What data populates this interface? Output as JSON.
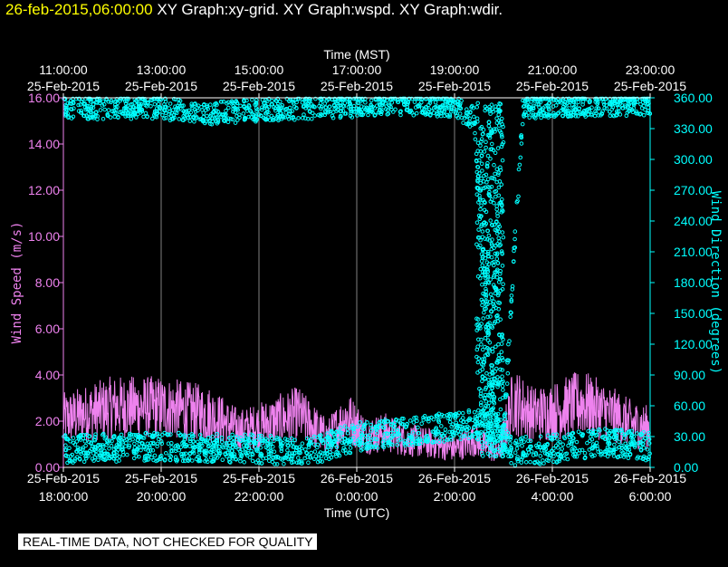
{
  "header": {
    "timestamp": "26-feb-2015,06:00:00",
    "graphs": "XY Graph:xy-grid.  XY Graph:wspd.  XY Graph:wdir."
  },
  "footer": {
    "qc_notice": "REAL-TIME DATA, NOT CHECKED FOR QUALITY"
  },
  "colors": {
    "wspd": "#ee82ee",
    "wdir": "#00ffff",
    "wdir_dark": "#008b8b",
    "grid": "#ffffff",
    "background": "#000000",
    "timestamp": "#ffff00"
  },
  "chart_data": {
    "type": "scatter",
    "title": "",
    "x_range_utc_hours": [
      18,
      30
    ],
    "top_axis": {
      "label": "Time (MST)",
      "ticks": [
        {
          "t": 18,
          "time": "11:00:00",
          "date": "25-Feb-2015"
        },
        {
          "t": 20,
          "time": "13:00:00",
          "date": "25-Feb-2015"
        },
        {
          "t": 22,
          "time": "15:00:00",
          "date": "25-Feb-2015"
        },
        {
          "t": 24,
          "time": "17:00:00",
          "date": "25-Feb-2015"
        },
        {
          "t": 26,
          "time": "19:00:00",
          "date": "25-Feb-2015"
        },
        {
          "t": 28,
          "time": "21:00:00",
          "date": "25-Feb-2015"
        },
        {
          "t": 30,
          "time": "23:00:00",
          "date": "25-Feb-2015"
        }
      ]
    },
    "bottom_axis": {
      "label": "Time (UTC)",
      "ticks": [
        {
          "t": 18,
          "date": "25-Feb-2015",
          "time": "18:00:00"
        },
        {
          "t": 20,
          "date": "25-Feb-2015",
          "time": "20:00:00"
        },
        {
          "t": 22,
          "date": "25-Feb-2015",
          "time": "22:00:00"
        },
        {
          "t": 24,
          "date": "26-Feb-2015",
          "time": "0:00:00"
        },
        {
          "t": 26,
          "date": "26-Feb-2015",
          "time": "2:00:00"
        },
        {
          "t": 28,
          "date": "26-Feb-2015",
          "time": "4:00:00"
        },
        {
          "t": 30,
          "date": "26-Feb-2015",
          "time": "6:00:00"
        }
      ]
    },
    "left_axis": {
      "label": "Wind Speed (m/s)",
      "range": [
        0,
        16
      ],
      "ticks": [
        "0.00",
        "2.00",
        "4.00",
        "6.00",
        "8.00",
        "10.00",
        "12.00",
        "14.00",
        "16.00"
      ]
    },
    "right_axis": {
      "label": "Wind Direction (degrees)",
      "range": [
        0,
        360
      ],
      "ticks": [
        "0.00",
        "30.00",
        "60.00",
        "90.00",
        "120.00",
        "150.00",
        "180.00",
        "210.00",
        "240.00",
        "270.00",
        "300.00",
        "330.00",
        "360.00"
      ]
    },
    "grid": "vertical at major ticks",
    "series": [
      {
        "name": "",
        "axis": "left",
        "style": "line",
        "note_key": "wspd",
        "segments_utc_hours_mean_ms": [
          [
            18.0,
            2.1
          ],
          [
            19.0,
            2.6
          ],
          [
            20.0,
            2.6
          ],
          [
            21.0,
            2.3
          ],
          [
            21.6,
            1.6
          ],
          [
            22.0,
            1.8
          ],
          [
            22.8,
            2.3
          ],
          [
            23.4,
            1.3
          ],
          [
            23.8,
            2.2
          ],
          [
            24.2,
            1.4
          ],
          [
            24.6,
            1.5
          ],
          [
            25.0,
            1.2
          ],
          [
            25.6,
            1.0
          ],
          [
            26.0,
            0.8
          ],
          [
            26.4,
            1.2
          ],
          [
            26.9,
            0.6
          ],
          [
            27.2,
            2.9
          ],
          [
            27.6,
            2.3
          ],
          [
            28.0,
            2.4
          ],
          [
            28.6,
            2.8
          ],
          [
            29.2,
            2.3
          ],
          [
            29.6,
            1.9
          ],
          [
            30.0,
            1.7
          ]
        ]
      },
      {
        "name": "",
        "axis": "right",
        "style": "points",
        "note_key": "wdir",
        "segments_utc_hours_mean_deg": [
          [
            18.0,
            350
          ],
          [
            19.0,
            350
          ],
          [
            20.0,
            350
          ],
          [
            21.0,
            345
          ],
          [
            22.0,
            348
          ],
          [
            23.0,
            350
          ],
          [
            24.0,
            352
          ],
          [
            25.0,
            354
          ],
          [
            26.0,
            352
          ],
          [
            26.4,
            340
          ],
          [
            26.6,
            200
          ],
          [
            26.8,
            60
          ],
          [
            27.0,
            30
          ],
          [
            27.4,
            350
          ],
          [
            28.0,
            352
          ],
          [
            29.0,
            353
          ],
          [
            30.0,
            354
          ]
        ],
        "low_band_utc_hours_mean_deg": [
          [
            18.0,
            18
          ],
          [
            20.0,
            20
          ],
          [
            22.0,
            18
          ],
          [
            23.0,
            15
          ],
          [
            24.0,
            30
          ],
          [
            25.0,
            35
          ],
          [
            26.0,
            40
          ],
          [
            26.6,
            45
          ],
          [
            27.2,
            15
          ],
          [
            28.0,
            18
          ],
          [
            29.0,
            25
          ],
          [
            30.0,
            20
          ]
        ]
      }
    ]
  }
}
